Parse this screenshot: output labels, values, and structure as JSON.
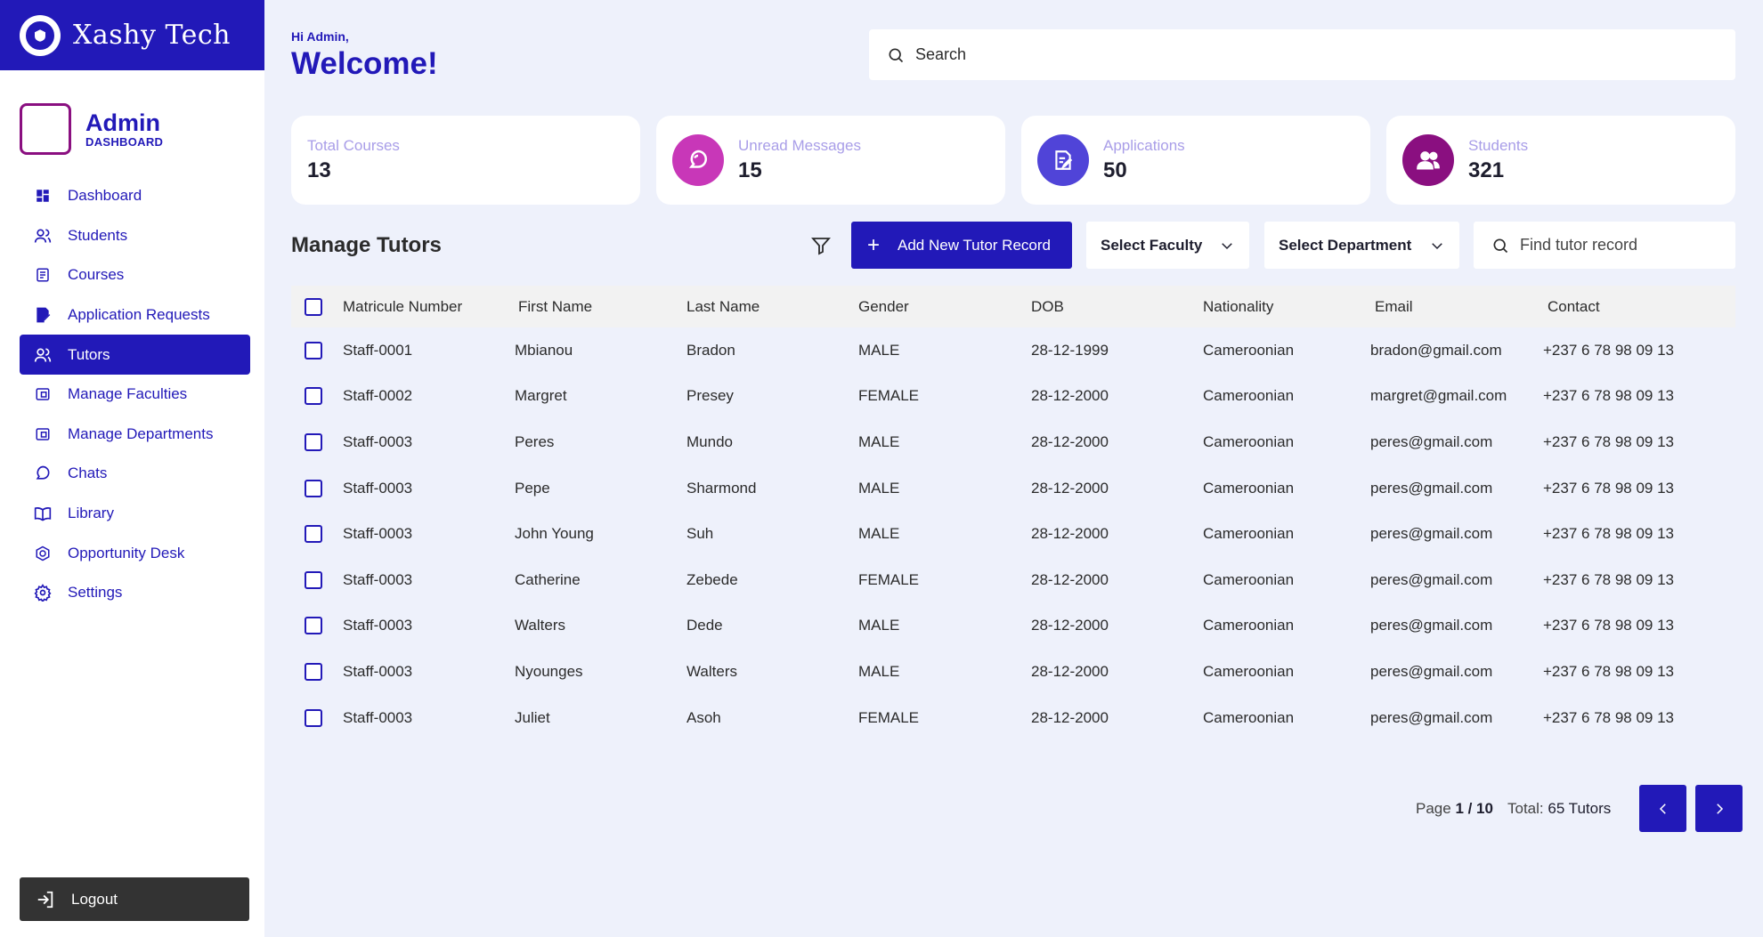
{
  "brand": {
    "name": "Xashy Tech"
  },
  "profile": {
    "role": "Admin",
    "subtitle": "DASHBOARD"
  },
  "sidebar": {
    "items": [
      {
        "label": "Dashboard",
        "icon": "grid-icon",
        "active": false
      },
      {
        "label": "Students",
        "icon": "users-icon",
        "active": false
      },
      {
        "label": "Courses",
        "icon": "document-icon",
        "active": false
      },
      {
        "label": "Application Requests",
        "icon": "edit-document-icon",
        "active": false
      },
      {
        "label": "Tutors",
        "icon": "users-icon",
        "active": true
      },
      {
        "label": "Manage Faculties",
        "icon": "panel-icon",
        "active": false
      },
      {
        "label": "Manage Departments",
        "icon": "panel-icon",
        "active": false
      },
      {
        "label": "Chats",
        "icon": "chat-icon",
        "active": false
      },
      {
        "label": "Library",
        "icon": "book-icon",
        "active": false
      },
      {
        "label": "Opportunity Desk",
        "icon": "target-icon",
        "active": false
      },
      {
        "label": "Settings",
        "icon": "gear-icon",
        "active": false
      }
    ],
    "logout_label": "Logout"
  },
  "header": {
    "greeting": "Hi Admin,",
    "welcome": "Welcome!",
    "search_placeholder": "Search"
  },
  "stats": [
    {
      "label": "Total Courses",
      "value": "13"
    },
    {
      "label": "Unread Messages",
      "value": "15",
      "icon": "chat-icon",
      "color": "#c837b8"
    },
    {
      "label": "Applications",
      "value": "50",
      "icon": "edit-document-icon",
      "color": "#5044d8"
    },
    {
      "label": "Students",
      "value": "321",
      "icon": "users-icon",
      "color": "#8a0f80"
    }
  ],
  "toolbar": {
    "title": "Manage Tutors",
    "add_label": "Add New Tutor Record",
    "faculty_label": "Select Faculty",
    "department_label": "Select Department",
    "find_placeholder": "Find tutor record"
  },
  "table": {
    "headers": [
      "Matricule Number",
      "First Name",
      "Last Name",
      "Gender",
      "DOB",
      "Nationality",
      "Email",
      "Contact"
    ],
    "rows": [
      [
        "Staff-0001",
        "Mbianou",
        "Bradon",
        "MALE",
        "28-12-1999",
        "Cameroonian",
        "bradon@gmail.com",
        "+237 6 78 98 09 13"
      ],
      [
        "Staff-0002",
        "Margret",
        "Presey",
        "FEMALE",
        "28-12-2000",
        "Cameroonian",
        "margret@gmail.com",
        "+237 6 78 98 09 13"
      ],
      [
        "Staff-0003",
        "Peres",
        "Mundo",
        "MALE",
        "28-12-2000",
        "Cameroonian",
        "peres@gmail.com",
        "+237 6 78 98 09 13"
      ],
      [
        "Staff-0003",
        "Pepe",
        "Sharmond",
        "MALE",
        "28-12-2000",
        "Cameroonian",
        "peres@gmail.com",
        "+237 6 78 98 09 13"
      ],
      [
        "Staff-0003",
        "John Young",
        "Suh",
        "MALE",
        "28-12-2000",
        "Cameroonian",
        "peres@gmail.com",
        "+237 6 78 98 09 13"
      ],
      [
        "Staff-0003",
        "Catherine",
        "Zebede",
        "FEMALE",
        "28-12-2000",
        "Cameroonian",
        "peres@gmail.com",
        "+237 6 78 98 09 13"
      ],
      [
        "Staff-0003",
        "Walters",
        "Dede",
        "MALE",
        "28-12-2000",
        "Cameroonian",
        "peres@gmail.com",
        "+237 6 78 98 09 13"
      ],
      [
        "Staff-0003",
        "Nyounges",
        "Walters",
        "MALE",
        "28-12-2000",
        "Cameroonian",
        "peres@gmail.com",
        "+237 6 78 98 09 13"
      ],
      [
        "Staff-0003",
        "Juliet",
        "Asoh",
        "FEMALE",
        "28-12-2000",
        "Cameroonian",
        "peres@gmail.com",
        "+237 6 78 98 09 13"
      ]
    ]
  },
  "pagination": {
    "page_prefix": "Page",
    "page_value": "1 / 10",
    "total_prefix": "Total:",
    "total_value": "65 Tutors"
  },
  "colors": {
    "primary": "#2219b8",
    "background": "#eef1fb",
    "logout": "#333333"
  }
}
